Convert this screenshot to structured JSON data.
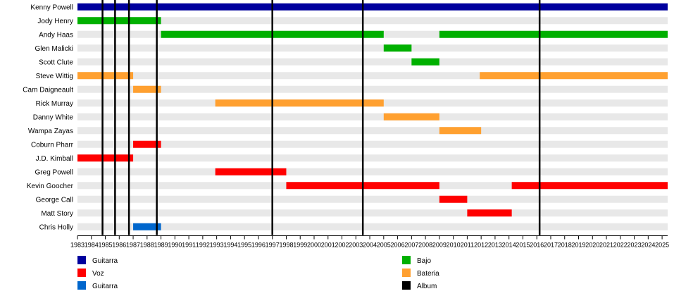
{
  "chart_data": {
    "type": "timeline",
    "x_range": [
      1983,
      2025.4
    ],
    "years": [
      1983,
      1984,
      1985,
      1986,
      1987,
      1988,
      1989,
      1990,
      1991,
      1992,
      1993,
      1994,
      1995,
      1996,
      1997,
      1998,
      1999,
      2000,
      2001,
      2002,
      2003,
      2004,
      2005,
      2006,
      2007,
      2008,
      2009,
      2010,
      2011,
      2012,
      2013,
      2014,
      2015,
      2016,
      2017,
      2018,
      2019,
      2020,
      2021,
      2022,
      2023,
      2024,
      2025
    ],
    "colors": {
      "Guitarra": "#00009e",
      "Voz": "#ff0000",
      "Guitarra 2": "#0066cc",
      "Bajo": "#00b000",
      "Bateria": "#ffa030",
      "Album": "#000000",
      "stripe": "#e8e8e8"
    },
    "members": [
      {
        "name": "Kenny Powell",
        "bars": [
          {
            "start": 1983,
            "end": 2025.4,
            "color_key": "Guitarra"
          }
        ]
      },
      {
        "name": "Jody Henry",
        "bars": [
          {
            "start": 1983,
            "end": 1989,
            "color_key": "Bajo"
          }
        ]
      },
      {
        "name": "Andy Haas",
        "bars": [
          {
            "start": 1989,
            "end": 2005,
            "color_key": "Bajo"
          },
          {
            "start": 2009,
            "end": 2025.4,
            "color_key": "Bajo"
          }
        ]
      },
      {
        "name": "Glen Malicki",
        "bars": [
          {
            "start": 2005,
            "end": 2007,
            "color_key": "Bajo"
          }
        ]
      },
      {
        "name": "Scott Clute",
        "bars": [
          {
            "start": 2007,
            "end": 2009,
            "color_key": "Bajo"
          }
        ]
      },
      {
        "name": "Steve Wittig",
        "bars": [
          {
            "start": 1983,
            "end": 1987,
            "color_key": "Bateria"
          },
          {
            "start": 2011.9,
            "end": 2025.4,
            "color_key": "Bateria"
          }
        ]
      },
      {
        "name": "Cam Daigneault",
        "bars": [
          {
            "start": 1987,
            "end": 1989,
            "color_key": "Bateria"
          }
        ]
      },
      {
        "name": "Rick Murray",
        "bars": [
          {
            "start": 1992.9,
            "end": 2005,
            "color_key": "Bateria"
          }
        ]
      },
      {
        "name": "Danny White",
        "bars": [
          {
            "start": 2005,
            "end": 2009,
            "color_key": "Bateria"
          }
        ]
      },
      {
        "name": "Wampa Zayas",
        "bars": [
          {
            "start": 2009,
            "end": 2012,
            "color_key": "Bateria"
          }
        ]
      },
      {
        "name": "Coburn Pharr",
        "bars": [
          {
            "start": 1987,
            "end": 1989,
            "color_key": "Voz"
          }
        ]
      },
      {
        "name": "J.D. Kimball",
        "bars": [
          {
            "start": 1983,
            "end": 1987,
            "color_key": "Voz"
          }
        ]
      },
      {
        "name": "Greg Powell",
        "bars": [
          {
            "start": 1992.9,
            "end": 1998,
            "color_key": "Voz"
          }
        ]
      },
      {
        "name": "Kevin Goocher",
        "bars": [
          {
            "start": 1998,
            "end": 2009,
            "color_key": "Voz"
          },
          {
            "start": 2014.2,
            "end": 2025.4,
            "color_key": "Voz"
          }
        ]
      },
      {
        "name": "George Call",
        "bars": [
          {
            "start": 2009,
            "end": 2011,
            "color_key": "Voz"
          }
        ]
      },
      {
        "name": "Matt Story",
        "bars": [
          {
            "start": 2011,
            "end": 2014.2,
            "color_key": "Voz"
          }
        ]
      },
      {
        "name": "Chris Holly",
        "bars": [
          {
            "start": 1987,
            "end": 1989,
            "color_key": "Guitarra 2"
          }
        ]
      }
    ],
    "albums": [
      1984.8,
      1985.7,
      1986.7,
      1988.7,
      1997,
      2003.5,
      2016.2
    ],
    "legend": [
      {
        "label": "Guitarra",
        "color_key": "Guitarra"
      },
      {
        "label": "Voz",
        "color_key": "Voz"
      },
      {
        "label": "Guitarra",
        "color_key": "Guitarra 2"
      },
      {
        "label": "Bajo",
        "color_key": "Bajo"
      },
      {
        "label": "Bateria",
        "color_key": "Bateria"
      },
      {
        "label": "Album",
        "color_key": "Album"
      }
    ]
  }
}
